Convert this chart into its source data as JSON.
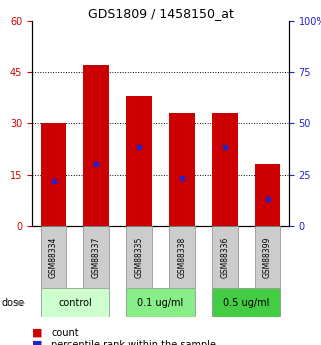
{
  "title": "GDS1809 / 1458150_at",
  "categories": [
    "GSM88334",
    "GSM88337",
    "GSM88335",
    "GSM88338",
    "GSM88336",
    "GSM88399"
  ],
  "bar_heights": [
    30,
    47,
    38,
    33,
    33,
    18
  ],
  "blue_marker_y": [
    13,
    18,
    23,
    14,
    23,
    8
  ],
  "ylim_left": [
    0,
    60
  ],
  "ylim_right": [
    0,
    100
  ],
  "yticks_left": [
    0,
    15,
    30,
    45,
    60
  ],
  "yticks_right": [
    0,
    25,
    50,
    75,
    100
  ],
  "bar_color": "#cc0000",
  "marker_color": "#2222cc",
  "bar_width": 0.6,
  "dose_groups": [
    {
      "label": "control",
      "indices": [
        0,
        1
      ],
      "color": "#ccffcc"
    },
    {
      "label": "0.1 ug/ml",
      "indices": [
        2,
        3
      ],
      "color": "#88ee88"
    },
    {
      "label": "0.5 ug/ml",
      "indices": [
        4,
        5
      ],
      "color": "#44cc44"
    }
  ],
  "dose_label": "dose",
  "legend_count_label": "count",
  "legend_percentile_label": "percentile rank within the sample",
  "bg_color": "#ffffff",
  "plot_bg": "#ffffff",
  "xlabel_bg": "#cccccc",
  "grid_dotted_ticks": [
    15,
    30,
    45
  ]
}
